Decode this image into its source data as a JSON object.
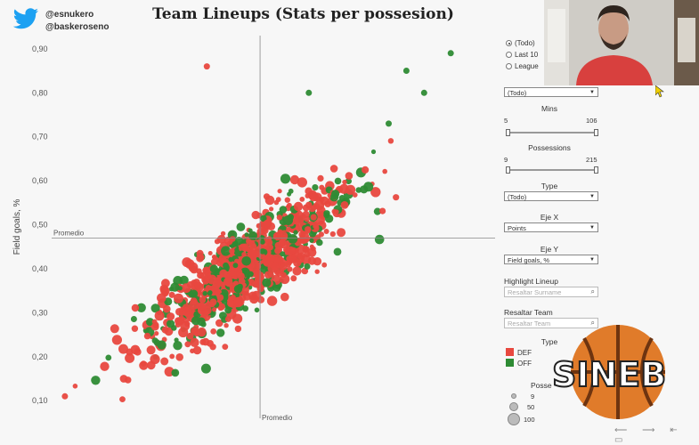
{
  "header": {
    "handle1": "@esnukero",
    "handle2": "@baskeroseno",
    "title": "Team Lineups (Stats per possesion)"
  },
  "colors": {
    "def": "#e8483f",
    "off": "#2e8b34",
    "bg": "#f7f7f7"
  },
  "chart_data": {
    "type": "scatter",
    "title": "Team Lineups (Stats per possesion)",
    "xlabel": "",
    "ylabel": "Field goals, %",
    "ylim": [
      0.06,
      0.93
    ],
    "yticks": [
      "0,10",
      "0,20",
      "0,30",
      "0,40",
      "0,50",
      "0,60",
      "0,70",
      "0,80",
      "0,90"
    ],
    "grid": false,
    "reference_lines": {
      "x_label": "Promedio",
      "y_label": "Promedio",
      "y_value": 0.47,
      "x_fraction": 0.47
    },
    "series": [
      {
        "name": "DEF",
        "color": "#e8483f"
      },
      {
        "name": "OFF",
        "color": "#2e8b34"
      }
    ],
    "legend_position": "right"
  },
  "panel": {
    "mode_options": [
      "(Todo)",
      "Last 10",
      "League"
    ],
    "mode_selected": 0,
    "team_select": "(Todo)",
    "mins_label": "Mins",
    "mins_min": "5",
    "mins_max": "106",
    "poss_label": "Possessions",
    "poss_min": "9",
    "poss_max": "215",
    "type_label": "Type",
    "type_select": "(Todo)",
    "ejex_label": "Eje X",
    "ejex_select": "Points",
    "ejey_label": "Eje Y",
    "ejey_select": "Field goals, %",
    "highlight_label": "Highlight Lineup",
    "highlight_placeholder": "Resaltar Surname",
    "team_label": "Resaltar Team",
    "team_placeholder": "Resaltar Team",
    "legend_title": "Type",
    "legend_def": "DEF",
    "legend_off": "OFF",
    "size_title": "Posse",
    "size_values": [
      "9",
      "50",
      "100"
    ]
  },
  "logo": {
    "text": "SINEB"
  },
  "webcam": {
    "icon": "person-video-icon"
  }
}
